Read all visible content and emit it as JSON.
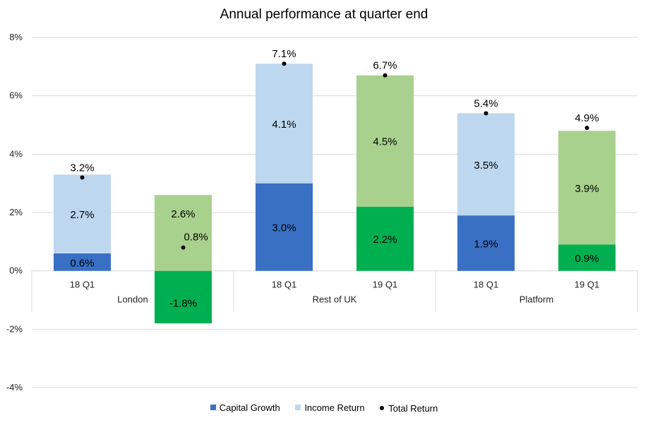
{
  "chart_data": {
    "type": "bar",
    "title": "Annual performance at quarter end",
    "xlabel": "",
    "ylabel": "",
    "ylim": [
      -4,
      8
    ],
    "yticks": [
      -4,
      -2,
      0,
      2,
      4,
      6,
      8
    ],
    "ytick_labels": [
      "-4%",
      "-2%",
      "0%",
      "2%",
      "4%",
      "6%",
      "8%"
    ],
    "grid": true,
    "legend_position": "bottom",
    "groups": [
      "London",
      "Rest of UK",
      "Platform"
    ],
    "categories": [
      "18 Q1",
      "19 Q1",
      "18 Q1",
      "19 Q1",
      "18 Q1",
      "19 Q1"
    ],
    "category_group": [
      0,
      0,
      1,
      1,
      2,
      2
    ],
    "series": [
      {
        "name": "Capital Growth",
        "kind": "bar",
        "values": [
          0.6,
          -1.8,
          3.0,
          2.2,
          1.9,
          0.9
        ],
        "labels": [
          "0.6%",
          "-1.8%",
          "3.0%",
          "2.2%",
          "1.9%",
          "0.9%"
        ]
      },
      {
        "name": "Income Return",
        "kind": "bar",
        "values": [
          2.7,
          2.6,
          4.1,
          4.5,
          3.5,
          3.9
        ],
        "labels": [
          "2.7%",
          "2.6%",
          "4.1%",
          "4.5%",
          "3.5%",
          "3.9%"
        ]
      },
      {
        "name": "Total Return",
        "kind": "point",
        "values": [
          3.2,
          0.8,
          7.1,
          6.7,
          5.4,
          4.9
        ],
        "labels": [
          "3.2%",
          "0.8%",
          "7.1%",
          "6.7%",
          "5.4%",
          "4.9%"
        ]
      }
    ],
    "colors": {
      "capital_2018": "#3A70C4",
      "capital_2019": "#00B050",
      "income_2018": "#BDD7EE",
      "income_2019": "#A9D18E",
      "total": "#000000",
      "grid": "#D9D9D9"
    },
    "legend": [
      {
        "label": "Capital Growth",
        "color": "#3A70C4",
        "marker": "square"
      },
      {
        "label": "Income Return",
        "color": "#BDD7EE",
        "marker": "square"
      },
      {
        "label": "Total Return",
        "color": "#000000",
        "marker": "dot"
      }
    ]
  }
}
